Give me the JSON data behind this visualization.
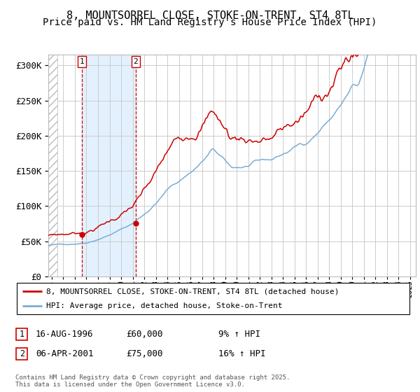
{
  "title": "8, MOUNTSORREL CLOSE, STOKE-ON-TRENT, ST4 8TL",
  "subtitle": "Price paid vs. HM Land Registry's House Price Index (HPI)",
  "ytick_values": [
    0,
    50000,
    100000,
    150000,
    200000,
    250000,
    300000
  ],
  "ylim": [
    0,
    315000
  ],
  "xlim_start": 1993.7,
  "xlim_end": 2025.5,
  "hpi_color": "#7aadd4",
  "price_color": "#cc0000",
  "purchase1_date": 1996.62,
  "purchase1_price": 60000,
  "purchase2_date": 2001.27,
  "purchase2_price": 75000,
  "legend_line1": "8, MOUNTSORREL CLOSE, STOKE-ON-TRENT, ST4 8TL (detached house)",
  "legend_line2": "HPI: Average price, detached house, Stoke-on-Trent",
  "annotation1_date": "16-AUG-1996",
  "annotation1_price": "£60,000",
  "annotation1_hpi": "9% ↑ HPI",
  "annotation2_date": "06-APR-2001",
  "annotation2_price": "£75,000",
  "annotation2_hpi": "16% ↑ HPI",
  "footer": "Contains HM Land Registry data © Crown copyright and database right 2025.\nThis data is licensed under the Open Government Licence v3.0.",
  "bg_shade_color": "#ddeeff",
  "grid_color": "#cccccc",
  "title_fontsize": 11,
  "subtitle_fontsize": 10
}
